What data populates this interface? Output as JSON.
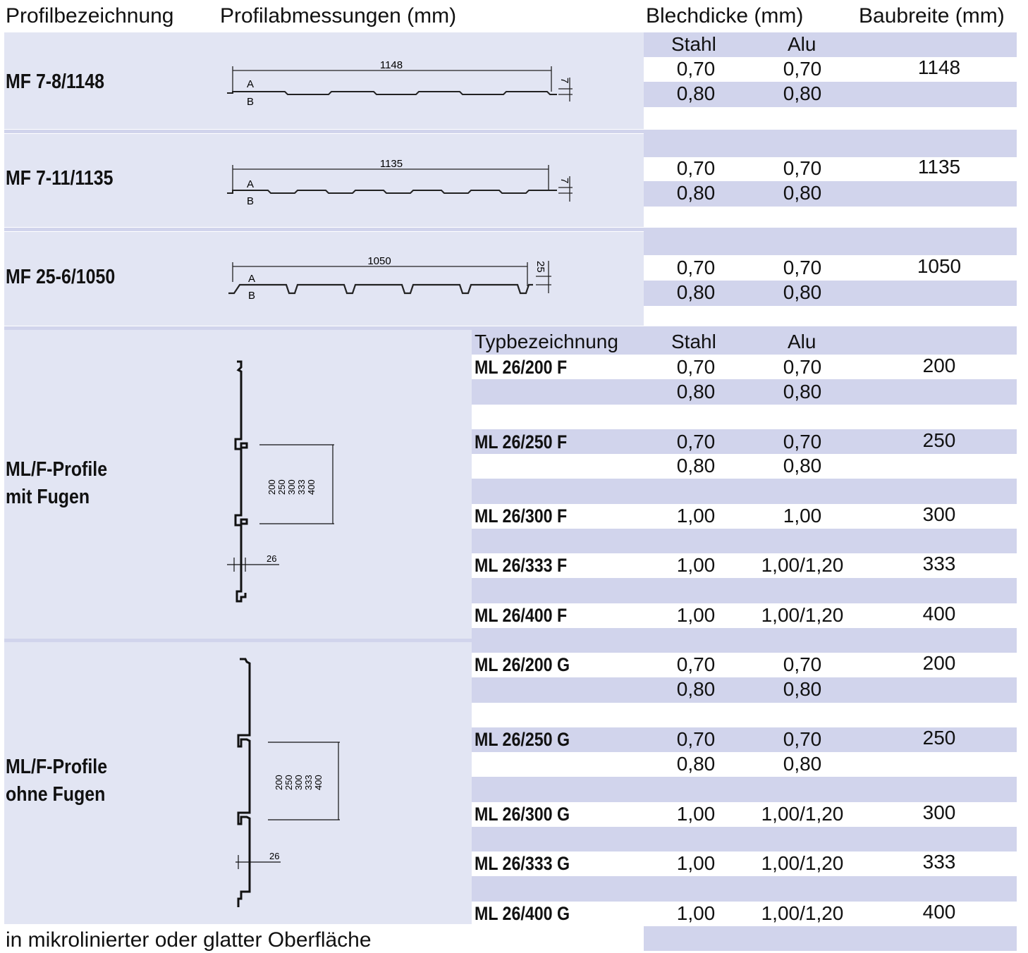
{
  "headers": {
    "profilbezeichnung": "Profilbezeichnung",
    "profilabmessungen": "Profilabmessungen (mm)",
    "blechdicke": "Blechdicke (mm)",
    "baubreite": "Baubreite (mm)"
  },
  "mf_subheader": {
    "stahl": "Stahl",
    "alu": "Alu"
  },
  "mf_profiles": [
    {
      "name": "MF 7-8/1148",
      "width_label": "1148",
      "height_label": "7",
      "point_a": "A",
      "point_b": "B",
      "rows": [
        {
          "stahl": "0,70",
          "alu": "0,70",
          "baubreite": "1148"
        },
        {
          "stahl": "0,80",
          "alu": "0,80",
          "baubreite": ""
        }
      ]
    },
    {
      "name": "MF 7-11/1135",
      "width_label": "1135",
      "height_label": "7",
      "point_a": "A",
      "point_b": "B",
      "rows": [
        {
          "stahl": "0,70",
          "alu": "0,70",
          "baubreite": "1135"
        },
        {
          "stahl": "0,80",
          "alu": "0,80",
          "baubreite": ""
        }
      ]
    },
    {
      "name": "MF 25-6/1050",
      "width_label": "1050",
      "height_label": "25",
      "point_a": "A",
      "point_b": "B",
      "rows": [
        {
          "stahl": "0,70",
          "alu": "0,70",
          "baubreite": "1050"
        },
        {
          "stahl": "0,80",
          "alu": "0,80",
          "baubreite": ""
        }
      ]
    }
  ],
  "ml_subheader": {
    "typ": "Typbezeichnung",
    "stahl": "Stahl",
    "alu": "Alu"
  },
  "ml_groups": [
    {
      "label_line1": "ML/F-Profile",
      "label_line2": "mit Fugen",
      "diagram": {
        "widths": [
          "200",
          "250",
          "300",
          "333",
          "400"
        ],
        "depth": "26"
      }
    },
    {
      "label_line1": "ML/F-Profile",
      "label_line2": "ohne Fugen",
      "diagram": {
        "widths": [
          "200",
          "250",
          "300",
          "333",
          "400"
        ],
        "depth": "26"
      }
    }
  ],
  "ml_rows": [
    {
      "typ": "ML 26/200 F",
      "stahl": "0,70",
      "alu": "0,70",
      "baubreite": "200"
    },
    {
      "typ": "",
      "stahl": "0,80",
      "alu": "0,80",
      "baubreite": ""
    },
    {
      "typ": "ML 26/250 F",
      "stahl": "0,70",
      "alu": "0,70",
      "baubreite": "250"
    },
    {
      "typ": "",
      "stahl": "0,80",
      "alu": "0,80",
      "baubreite": ""
    },
    {
      "typ": "ML 26/300 F",
      "stahl": "1,00",
      "alu": "1,00",
      "baubreite": "300"
    },
    {
      "typ": "ML 26/333 F",
      "stahl": "1,00",
      "alu": "1,00/1,20",
      "baubreite": "333"
    },
    {
      "typ": "ML 26/400 F",
      "stahl": "1,00",
      "alu": "1,00/1,20",
      "baubreite": "400"
    },
    {
      "typ": "ML 26/200 G",
      "stahl": "0,70",
      "alu": "0,70",
      "baubreite": "200"
    },
    {
      "typ": "",
      "stahl": "0,80",
      "alu": "0,80",
      "baubreite": ""
    },
    {
      "typ": "ML 26/250 G",
      "stahl": "0,70",
      "alu": "0,70",
      "baubreite": "250"
    },
    {
      "typ": "",
      "stahl": "0,80",
      "alu": "0,80",
      "baubreite": ""
    },
    {
      "typ": "ML 26/300 G",
      "stahl": "1,00",
      "alu": "1,00/1,20",
      "baubreite": "300"
    },
    {
      "typ": "ML 26/333 G",
      "stahl": "1,00",
      "alu": "1,00/1,20",
      "baubreite": "333"
    },
    {
      "typ": "ML 26/400 G",
      "stahl": "1,00",
      "alu": "1,00/1,20",
      "baubreite": "400"
    }
  ],
  "footnote": "in mikrolinierter oder glatter Oberfläche",
  "colors": {
    "panel": "#e2e5f3",
    "band": "#d1d4ec",
    "text": "#111111"
  }
}
